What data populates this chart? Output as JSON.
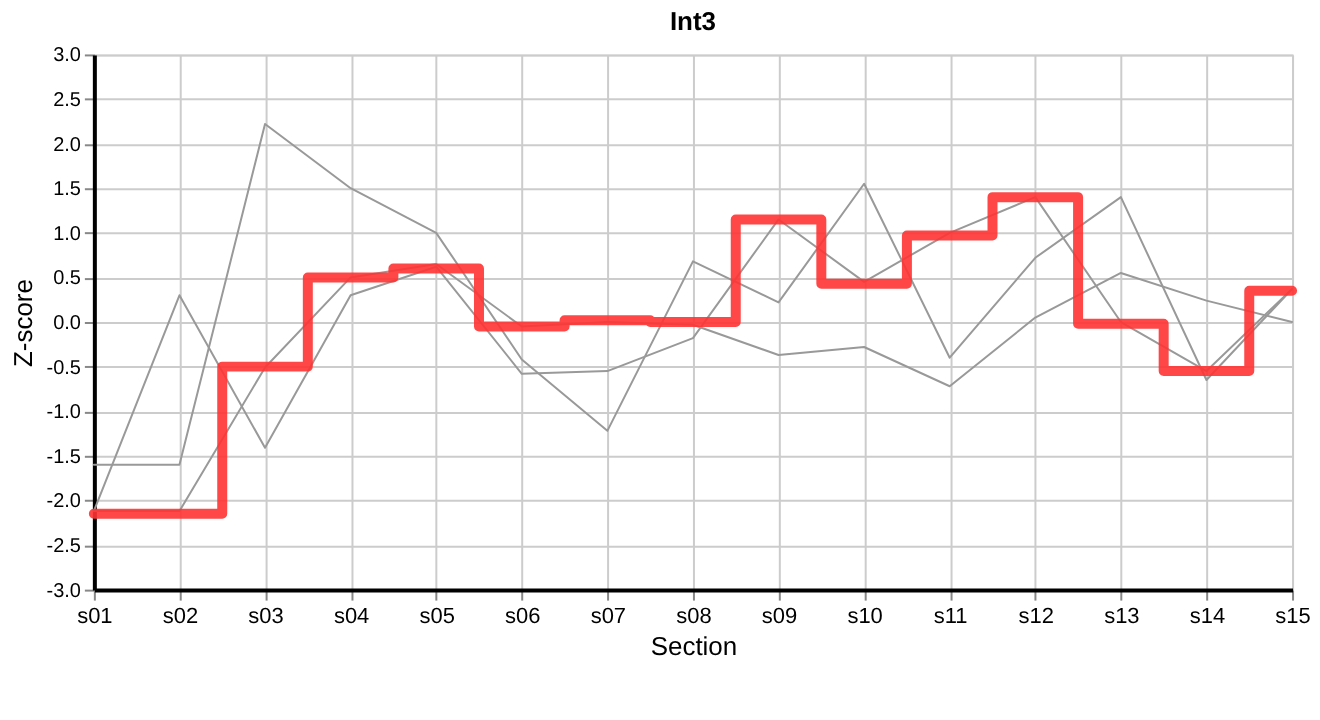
{
  "chart_data": {
    "type": "line",
    "title": "Int3",
    "xlabel": "Section",
    "ylabel": "Z-score",
    "categories": [
      "s01",
      "s02",
      "s03",
      "s04",
      "s05",
      "s06",
      "s07",
      "s08",
      "s09",
      "s10",
      "s11",
      "s12",
      "s13",
      "s14",
      "s15"
    ],
    "series": [
      {
        "color": "#999999",
        "values": [
          -1.6,
          -1.6,
          2.22,
          1.5,
          1.0,
          -0.42,
          -1.22,
          0.68,
          0.22,
          1.55,
          -0.4,
          0.72,
          1.4,
          -0.65,
          0.37
        ]
      },
      {
        "color": "#999999",
        "values": [
          -2.12,
          0.3,
          -1.41,
          0.3,
          0.62,
          -0.58,
          -0.55,
          -0.18,
          1.15,
          0.45,
          1.0,
          1.4,
          0.0,
          -0.55,
          0.37
        ]
      },
      {
        "color": "#999999",
        "values": [
          -2.12,
          -2.12,
          -0.51,
          0.5,
          0.65,
          -0.05,
          0.0,
          -0.03,
          -0.37,
          -0.28,
          -0.72,
          0.05,
          0.55,
          0.24,
          0.0
        ]
      },
      {
        "type": "step",
        "color": "#ff3333",
        "values": [
          -2.15,
          -2.15,
          -0.5,
          0.5,
          0.6,
          -0.05,
          0.02,
          0.0,
          1.15,
          0.43,
          0.97,
          1.4,
          -0.02,
          -0.55,
          0.35
        ]
      }
    ],
    "ylim": [
      -3.0,
      3.0
    ],
    "yticks": [
      {
        "value": -3,
        "label": "-3.0"
      },
      {
        "value": -2.5,
        "label": "-2.5"
      },
      {
        "value": -2,
        "label": "-2.0"
      },
      {
        "value": -1.5,
        "label": "-1.5"
      },
      {
        "value": -1,
        "label": "-1.0"
      },
      {
        "value": -0.5,
        "label": "-0.5"
      },
      {
        "value": 0,
        "label": "0.0"
      },
      {
        "value": 0.5,
        "label": "0.5"
      },
      {
        "value": 1,
        "label": "1.0"
      },
      {
        "value": 1.5,
        "label": "1.5"
      },
      {
        "value": 2,
        "label": "2.0"
      },
      {
        "value": 2.5,
        "label": "2.5"
      },
      {
        "value": 3,
        "label": "3.0"
      }
    ],
    "grid": true,
    "marker": "none",
    "line_style": "solid"
  }
}
